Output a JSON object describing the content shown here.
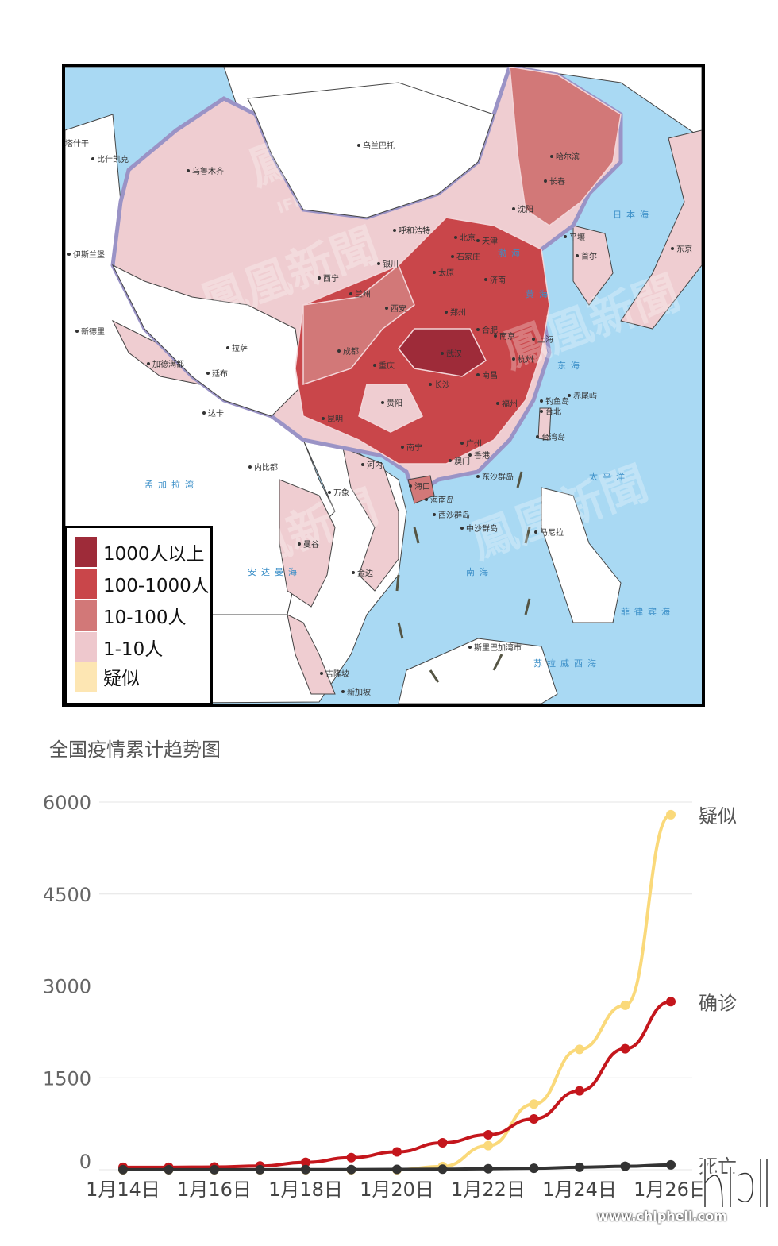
{
  "map": {
    "watermark": "鳳凰新聞",
    "watermark_sub": "IFENG NEWS",
    "cities": [
      "乌兰巴托",
      "哈尔滨",
      "长春",
      "沈阳",
      "乌鲁木齐",
      "呼和浩特",
      "北京",
      "天津",
      "石家庄",
      "太原",
      "济南",
      "西宁",
      "兰州",
      "银川",
      "西安",
      "郑州",
      "合肥",
      "南京",
      "上海",
      "拉萨",
      "成都",
      "重庆",
      "武汉",
      "杭州",
      "长沙",
      "南昌",
      "贵阳",
      "福州",
      "台北",
      "昆明",
      "南宁",
      "广州",
      "香港",
      "澳门",
      "海口",
      "平壤",
      "首尔",
      "东京",
      "加德满都",
      "新德里",
      "伊斯兰堡",
      "比什凯克",
      "河内",
      "内比都",
      "万象",
      "曼谷",
      "金边",
      "马尼拉",
      "吉隆坡",
      "新加坡",
      "斯里巴加湾市",
      "海南岛",
      "东沙群岛",
      "西沙群岛",
      "中沙群岛",
      "台湾岛",
      "钓鱼岛",
      "赤尾屿",
      "达卡",
      "廷布",
      "塔什干"
    ],
    "seas": [
      "渤海",
      "黄海",
      "东海",
      "南海",
      "日本海",
      "太平洋",
      "孟加拉湾",
      "安达曼海",
      "菲律宾海",
      "苏拉威西海"
    ]
  },
  "legend": {
    "items": [
      {
        "label": "1000人以上",
        "color": "#9e2b39"
      },
      {
        "label": "100-1000人",
        "color": "#c9464a"
      },
      {
        "label": "10-100人",
        "color": "#d27878"
      },
      {
        "label": "1-10人",
        "color": "#eec8cd"
      },
      {
        "label": "疑似",
        "color": "#fde6b3"
      }
    ]
  },
  "chart_title": "全国疫情累计趋势图",
  "chart_data": {
    "type": "line",
    "title": "全国疫情累计趋势图",
    "x": [
      "1月14日",
      "1月15日",
      "1月16日",
      "1月17日",
      "1月18日",
      "1月19日",
      "1月20日",
      "1月21日",
      "1月22日",
      "1月23日",
      "1月24日",
      "1月25日",
      "1月26日"
    ],
    "xtick_labels": [
      "1月14日",
      "1月16日",
      "1月18日",
      "1月20日",
      "1月22日",
      "1月24日",
      "1月26日"
    ],
    "yticks": [
      "6000",
      "4500",
      "3000",
      "1500",
      "0"
    ],
    "ylim": [
      0,
      6000
    ],
    "grid": true,
    "series": [
      {
        "name": "疑似",
        "color": "#fad97a",
        "values": [
          0,
          0,
          0,
          0,
          0,
          0,
          0,
          54,
          393,
          1072,
          1965,
          2684,
          5794
        ]
      },
      {
        "name": "确诊",
        "color": "#c4161c",
        "values": [
          41,
          41,
          45,
          62,
          121,
          198,
          291,
          440,
          571,
          830,
          1287,
          1975,
          2744
        ]
      },
      {
        "name": "死亡",
        "color": "#333333",
        "values": [
          1,
          1,
          2,
          2,
          3,
          4,
          6,
          9,
          17,
          25,
          41,
          56,
          80
        ]
      }
    ]
  },
  "site": {
    "url": "www.chiphell.com",
    "logo_text": "chiphell"
  }
}
